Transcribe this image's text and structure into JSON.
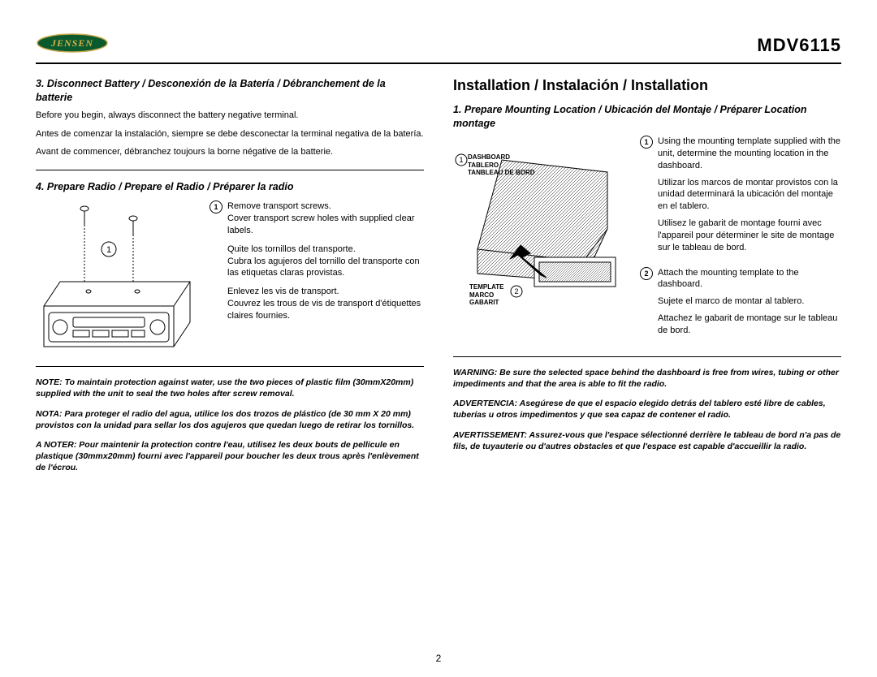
{
  "header": {
    "logo_text": "JENSEN",
    "model": "MDV6115"
  },
  "page_number": "2",
  "left": {
    "section3": {
      "heading": "3. Disconnect Battery / Desconexión de la Batería / Débranchement de la batterie",
      "p_en": "Before you begin, always disconnect the battery negative terminal.",
      "p_es": "Antes de comenzar la instalación, siempre se debe desconectar la terminal negativa de la batería.",
      "p_fr": "Avant de commencer, débranchez toujours la borne négative de la batterie."
    },
    "section4": {
      "heading": "4. Prepare Radio / Prepare el Radio / Préparer la radio",
      "step1_en": "Remove transport screws.\nCover transport screw holes with supplied clear labels.",
      "step1_es": "Quite los tornillos del transporte.\nCubra los agujeros del tornillo del transporte con las etiquetas claras provistas.",
      "step1_fr": "Enlevez les vis de transport.\nCouvrez les trous de vis de transport d'étiquettes claires fournies.",
      "note_en": "NOTE: To maintain protection against water, use the two pieces of plastic film (30mmX20mm) supplied with the unit to seal the two holes after screw removal.",
      "note_es": "NOTA: Para proteger el radio del agua, utilice los dos trozos de plástico (de 30 mm X 20 mm) provistos con la unidad para sellar los dos agujeros que quedan luego de retirar los tornillos.",
      "note_fr": "A NOTER: Pour maintenir la protection contre l'eau, utilisez les deux bouts de pellicule en plastique (30mmx20mm) fourni avec l'appareil pour boucher les deux trous après l'enlèvement de l'écrou.",
      "callout_1": "1"
    },
    "figure": {
      "callout_number": "1"
    }
  },
  "right": {
    "big_heading": "Installation / Instalación / Installation",
    "section1": {
      "heading": "1. Prepare Mounting Location / Ubicación del Montaje / Préparer Location montage",
      "label_dashboard": "DASHBOARD\nTABLERO\nTANBLEAU DE BORD",
      "label_template": "TEMPLATE\nMARCO\nGABARIT",
      "callout_1": "1",
      "callout_2": "2",
      "step1_en": "Using the mounting template supplied with the unit, determine the mounting location in the dashboard.",
      "step1_es": "Utilizar los marcos de montar provistos con la unidad determinará la ubicación del montaje en el tablero.",
      "step1_fr": "Utilisez le gabarit de montage fourni avec l'appareil pour déterminer le site de montage sur le tableau de bord.",
      "step2_en": "Attach the mounting template to the dashboard.",
      "step2_es": "Sujete el marco de montar al tablero.",
      "step2_fr": "Attachez le gabarit de montage sur le tableau de bord.",
      "warn_en": "WARNING: Be sure the selected space behind the dashboard is free from wires, tubing or other impediments and that the area is able to fit the radio.",
      "warn_es": "ADVERTENCIA: Asegúrese de que el espacio elegido detrás del tablero esté libre de cables, tuberías u otros impedimentos y que sea capaz de contener el radio.",
      "warn_fr": "AVERTISSEMENT: Assurez-vous que l'espace sélectionné derrière le tableau de bord n'a pas de fils, de tuyauterie ou d'autres obstacles et que l'espace est capable d'accueillir la radio."
    }
  },
  "colors": {
    "logo_fill": "#0b5a2e",
    "logo_text": "#d9b24a",
    "logo_stroke": "#c9a84a"
  }
}
